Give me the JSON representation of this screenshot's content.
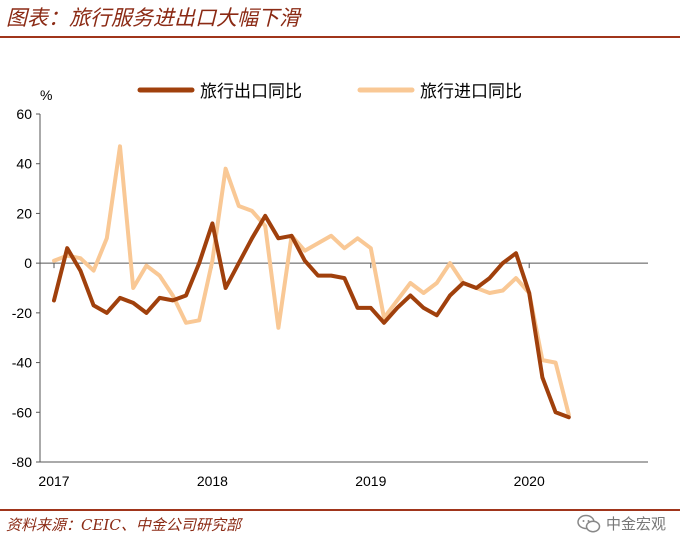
{
  "header": {
    "title": "图表：旅行服务进出口大幅下滑"
  },
  "footer": {
    "source": "资料来源：CEIC、中金公司研究部",
    "watermark": "中金宏观"
  },
  "colors": {
    "export": "#a0400c",
    "import": "#f9c895",
    "accent": "#8b2a14"
  },
  "chart_data": {
    "type": "line",
    "title": "",
    "ylabel": "%",
    "xlabel": "",
    "ylim": [
      -80,
      60
    ],
    "yticks": [
      60,
      40,
      20,
      0,
      -20,
      -40,
      -60,
      -80
    ],
    "ytick_labels": [
      "60",
      "40",
      "20",
      "0",
      "-20",
      "-40",
      "-60",
      "-80"
    ],
    "xlim": [
      0,
      45
    ],
    "xticks": [
      0,
      12,
      24,
      36
    ],
    "xtick_labels": [
      "2017",
      "2018",
      "2019",
      "2020"
    ],
    "legend_position": "top",
    "series": [
      {
        "name": "旅行出口同比",
        "color": "#a0400c",
        "values": [
          -15,
          6,
          -3,
          -17,
          -20,
          -14,
          -16,
          -20,
          -14,
          -15,
          -13,
          0,
          16,
          -10,
          0,
          10,
          19,
          10,
          11,
          1,
          -5,
          -5,
          -6,
          -18,
          -18,
          -24,
          -18,
          -13,
          -18,
          -21,
          -13,
          -8,
          -10,
          -6,
          0,
          4,
          -12,
          -46,
          -60,
          -62
        ]
      },
      {
        "name": "旅行进口同比",
        "color": "#f9c895",
        "values": [
          1,
          3,
          2,
          -3,
          10,
          47,
          -10,
          -1,
          -5,
          -13,
          -24,
          -23,
          1,
          38,
          23,
          21,
          15,
          -26,
          11,
          5,
          8,
          11,
          6,
          10,
          6,
          -22,
          -15,
          -8,
          -12,
          -8,
          0,
          -8,
          -10,
          -12,
          -11,
          -6,
          -12,
          -39,
          -40,
          -61
        ]
      }
    ]
  }
}
